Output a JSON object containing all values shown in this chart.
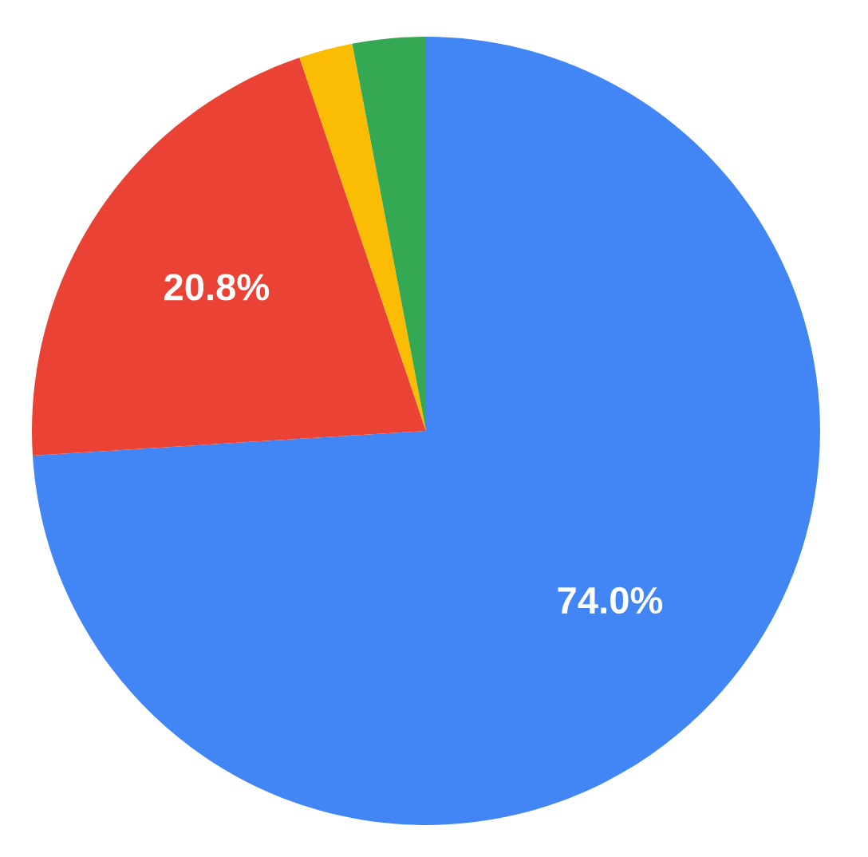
{
  "chart_data": {
    "type": "pie",
    "categories": [
      null,
      null,
      null,
      null
    ],
    "values": [
      74.0,
      20.8,
      2.2,
      3.0
    ],
    "colors": [
      "#4285f4",
      "#ea4335",
      "#fbbc04",
      "#34a853"
    ],
    "value_labels": [
      "74.0%",
      "20.8%",
      null,
      null
    ]
  }
}
